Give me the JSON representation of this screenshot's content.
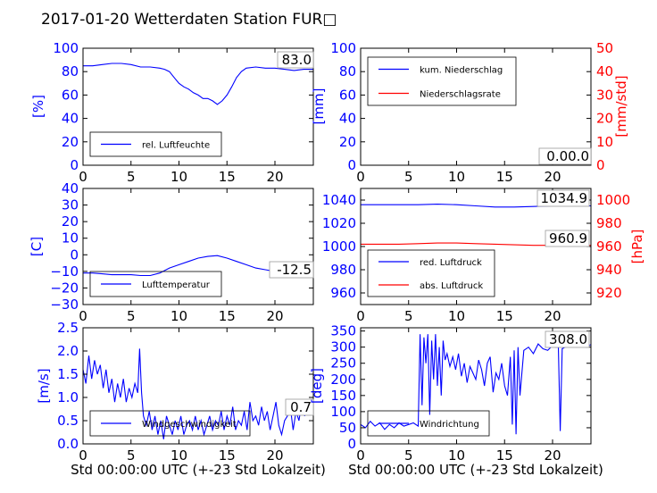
{
  "title": "2017-01-20 Wetterdaten Station FUR□",
  "xlabel": "Std 00:00:00 UTC (+-23 Std Lokalzeit)",
  "colors": {
    "blue": "#0000ff",
    "red": "#ff0000",
    "light_blue": "#6b6bff",
    "frame": "#000000"
  },
  "chart_data": [
    {
      "id": "humidity",
      "type": "line",
      "xlim": [
        0,
        24
      ],
      "ylim": [
        0,
        100
      ],
      "xticks": [
        "0",
        "5",
        "10",
        "15",
        "20"
      ],
      "yticks": [
        "0",
        "20",
        "40",
        "60",
        "80",
        "100"
      ],
      "ylabel": "[%]",
      "annotation": "83.0",
      "legend_position": "lower-left",
      "series": [
        {
          "name": "rel. Luftfeuchte",
          "color": "#0000ff",
          "x": [
            0,
            1,
            2,
            3,
            4,
            5,
            6,
            7,
            8,
            8.5,
            9,
            9.5,
            10,
            10.5,
            11,
            11.5,
            12,
            12.5,
            13,
            13.5,
            14,
            14.5,
            15,
            15.5,
            16,
            16.5,
            17,
            18,
            19,
            20,
            21,
            22,
            23,
            24
          ],
          "y": [
            85,
            85,
            86,
            87,
            87,
            86,
            84,
            84,
            83,
            82,
            80,
            75,
            70,
            67,
            65,
            62,
            60,
            57,
            57,
            55,
            52,
            55,
            60,
            67,
            75,
            80,
            83,
            84,
            83,
            83,
            82,
            81,
            82,
            82
          ]
        }
      ]
    },
    {
      "id": "precipitation",
      "type": "line",
      "xlim": [
        0,
        24
      ],
      "ylim": [
        0,
        100
      ],
      "ylim_right": [
        0,
        50
      ],
      "xticks": [
        "0",
        "5",
        "10",
        "15",
        "20"
      ],
      "yticks": [
        "0",
        "20",
        "40",
        "60",
        "80",
        "100"
      ],
      "yticks_right": [
        "0",
        "10",
        "20",
        "30",
        "40",
        "50"
      ],
      "ylabel": "[mm]",
      "ylabel_right": "[mm/std]",
      "annotation": "0.00.0",
      "legend_position": "upper-left",
      "series": [
        {
          "name": "kum. Niederschlag",
          "color": "#0000ff",
          "axis": "left",
          "x": [
            0,
            24
          ],
          "y": [
            0,
            0
          ]
        },
        {
          "name": "Niederschlagsrate",
          "color": "#ff0000",
          "axis": "right",
          "x": [
            0,
            24
          ],
          "y": [
            0,
            0
          ]
        }
      ]
    },
    {
      "id": "temperature",
      "type": "line",
      "xlim": [
        0,
        24
      ],
      "ylim": [
        -30,
        40
      ],
      "xticks": [
        "0",
        "5",
        "10",
        "15",
        "20"
      ],
      "yticks": [
        "−30",
        "−20",
        "−10",
        "0",
        "10",
        "20",
        "30",
        "40"
      ],
      "ylabel": "[C]",
      "annotation": "-12.5",
      "legend_position": "lower-left",
      "series": [
        {
          "name": "Lufttemperatur",
          "color": "#0000ff",
          "x": [
            0,
            1,
            2,
            3,
            4,
            5,
            6,
            7,
            8,
            9,
            10,
            11,
            12,
            13,
            14,
            15,
            16,
            17,
            18,
            19,
            20,
            21,
            22,
            23,
            24
          ],
          "y": [
            -11,
            -11,
            -11.5,
            -12,
            -12,
            -12,
            -12.5,
            -12.5,
            -11,
            -8,
            -6,
            -4,
            -2,
            -1,
            -0.5,
            -2,
            -4,
            -6,
            -8,
            -9,
            -10,
            -11,
            -12,
            -12.5,
            -12.5
          ]
        }
      ]
    },
    {
      "id": "pressure",
      "type": "line",
      "xlim": [
        0,
        24
      ],
      "ylim": [
        950,
        1050
      ],
      "ylim_right": [
        910,
        1010
      ],
      "xticks": [
        "0",
        "5",
        "10",
        "15",
        "20"
      ],
      "yticks": [
        "960",
        "980",
        "1000",
        "1020",
        "1040"
      ],
      "yticks_right": [
        "920",
        "940",
        "960",
        "980",
        "1000"
      ],
      "ylabel_right": "[hPa]",
      "annotations": [
        "1034.9",
        "960.9"
      ],
      "legend_position": "lower-left",
      "series": [
        {
          "name": "red. Luftdruck",
          "color": "#0000ff",
          "axis": "left",
          "x": [
            0,
            2,
            4,
            6,
            8,
            10,
            12,
            14,
            16,
            18,
            20,
            22,
            24
          ],
          "y": [
            1036,
            1036,
            1036,
            1036,
            1036.5,
            1036,
            1035,
            1034,
            1034,
            1034.5,
            1035,
            1035,
            1035
          ]
        },
        {
          "name": "abs. Luftdruck",
          "color": "#ff0000",
          "axis": "right",
          "x": [
            0,
            2,
            4,
            6,
            8,
            10,
            12,
            14,
            16,
            18,
            20,
            22,
            24
          ],
          "y": [
            962,
            962,
            962,
            962.5,
            963,
            963,
            962.5,
            962,
            961.5,
            961,
            961,
            961,
            961
          ]
        }
      ]
    },
    {
      "id": "windspeed",
      "type": "line",
      "xlim": [
        0,
        24
      ],
      "ylim": [
        0,
        2.5
      ],
      "xticks": [
        "0",
        "5",
        "10",
        "15",
        "20"
      ],
      "yticks": [
        "0.0",
        "0.5",
        "1.0",
        "1.5",
        "2.0",
        "2.5"
      ],
      "ylabel": "[m/s]",
      "annotation": "0.7",
      "legend_position": "lower-left",
      "series": [
        {
          "name": "Windgeschwindigkeit",
          "color": "#0000ff",
          "x": [
            0,
            0.3,
            0.6,
            0.9,
            1.2,
            1.5,
            1.8,
            2.1,
            2.4,
            2.7,
            3,
            3.3,
            3.6,
            3.9,
            4.2,
            4.5,
            4.8,
            5.1,
            5.4,
            5.7,
            5.9,
            6.1,
            6.3,
            6.6,
            6.9,
            7.2,
            7.5,
            7.8,
            8.1,
            8.4,
            8.7,
            9,
            9.3,
            9.6,
            9.9,
            10.2,
            10.5,
            10.8,
            11.1,
            11.4,
            11.7,
            12,
            12.3,
            12.6,
            12.9,
            13.2,
            13.5,
            13.8,
            14.1,
            14.4,
            14.7,
            15,
            15.3,
            15.6,
            15.9,
            16.2,
            16.5,
            16.8,
            17.1,
            17.4,
            17.7,
            18,
            18.3,
            18.6,
            18.9,
            19.2,
            19.5,
            19.8,
            20.1,
            20.4,
            20.7,
            21,
            21.3,
            21.6,
            21.9,
            22.2,
            22.5,
            22.8,
            23.1,
            23.4,
            23.7,
            24
          ],
          "y": [
            1.6,
            1.3,
            1.9,
            1.4,
            1.8,
            1.5,
            1.7,
            1.2,
            1.6,
            1.1,
            1.4,
            0.9,
            1.3,
            1.0,
            1.4,
            0.9,
            1.2,
            1.0,
            1.3,
            1.1,
            2.05,
            1.1,
            0.6,
            0.4,
            0.7,
            0.3,
            0.6,
            0.2,
            0.5,
            0.1,
            0.6,
            0.4,
            0.2,
            0.5,
            0.3,
            0.6,
            0.2,
            0.4,
            0.5,
            0.3,
            0.6,
            0.3,
            0.5,
            0.2,
            0.4,
            0.6,
            0.3,
            0.5,
            0.4,
            0.7,
            0.3,
            0.6,
            0.4,
            0.8,
            0.3,
            0.5,
            0.4,
            0.7,
            0.3,
            0.9,
            0.5,
            0.6,
            0.4,
            0.8,
            0.5,
            0.7,
            0.3,
            0.6,
            0.9,
            0.4,
            0.2,
            0.5,
            0.6,
            0.8,
            0.3,
            0.7,
            0.5,
            0.9,
            0.6,
            0.8,
            0.7,
            0.7
          ]
        }
      ]
    },
    {
      "id": "winddirection",
      "type": "line",
      "xlim": [
        0,
        24
      ],
      "ylim": [
        0,
        360
      ],
      "xticks": [
        "0",
        "5",
        "10",
        "15",
        "20"
      ],
      "yticks": [
        "0",
        "50",
        "100",
        "150",
        "200",
        "250",
        "300",
        "350"
      ],
      "ylabel": "[deg]",
      "annotation": "308.0",
      "legend_position": "lower-left",
      "series": [
        {
          "name": "Windrichtung",
          "color": "#0000ff",
          "x": [
            0,
            0.5,
            1,
            1.5,
            2,
            2.5,
            3,
            3.5,
            4,
            4.5,
            5,
            5.5,
            6,
            6.2,
            6.4,
            6.6,
            6.8,
            7,
            7.2,
            7.4,
            7.6,
            7.8,
            8,
            8.2,
            8.4,
            8.6,
            8.8,
            9,
            9.3,
            9.6,
            9.9,
            10.2,
            10.5,
            10.8,
            11.1,
            11.4,
            11.7,
            12,
            12.3,
            12.6,
            12.9,
            13.2,
            13.5,
            13.8,
            14.1,
            14.4,
            14.7,
            15,
            15.3,
            15.6,
            15.8,
            16,
            16.2,
            16.4,
            16.6,
            17,
            17.5,
            18,
            18.5,
            19,
            19.5,
            20,
            20.3,
            20.6,
            20.8,
            21,
            21.3,
            21.6,
            22,
            22.5,
            23,
            23.5,
            24
          ],
          "y": [
            60,
            50,
            70,
            55,
            65,
            45,
            60,
            50,
            65,
            55,
            60,
            65,
            55,
            340,
            120,
            330,
            250,
            340,
            90,
            320,
            200,
            340,
            180,
            300,
            150,
            320,
            260,
            280,
            240,
            270,
            230,
            280,
            210,
            250,
            190,
            240,
            220,
            200,
            260,
            230,
            180,
            250,
            270,
            160,
            220,
            200,
            250,
            180,
            150,
            270,
            60,
            290,
            30,
            300,
            150,
            290,
            300,
            280,
            310,
            295,
            290,
            305,
            300,
            300,
            40,
            295,
            300,
            310,
            305,
            300,
            310,
            300,
            308
          ]
        }
      ]
    }
  ]
}
